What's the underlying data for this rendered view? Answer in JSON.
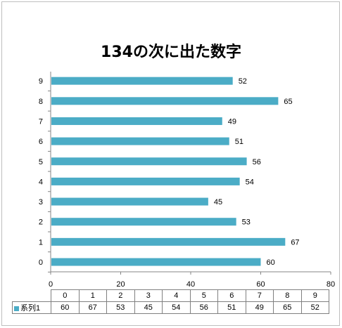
{
  "chart_data": {
    "type": "bar",
    "orientation": "horizontal",
    "title": "134の次に出た数字",
    "categories": [
      "0",
      "1",
      "2",
      "3",
      "4",
      "5",
      "6",
      "7",
      "8",
      "9"
    ],
    "series": [
      {
        "name": "系列1",
        "values": [
          60,
          67,
          53,
          45,
          54,
          56,
          51,
          49,
          65,
          52
        ],
        "color": "#4bacc6"
      }
    ],
    "xlim": [
      0,
      80
    ],
    "x_ticks": [
      "0",
      "20",
      "40",
      "60",
      "80"
    ],
    "data_labels": true,
    "grid": false,
    "data_table": true
  }
}
